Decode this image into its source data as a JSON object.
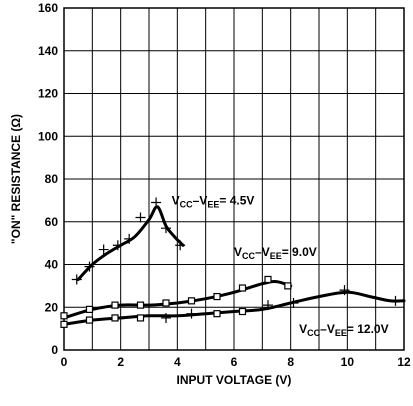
{
  "chart_data": {
    "type": "line",
    "title": "",
    "xlabel": "INPUT VOLTAGE (V)",
    "ylabel": "\"ON\" RESISTANCE (Ω)",
    "xlim": [
      0,
      12
    ],
    "ylim": [
      0,
      160
    ],
    "xticks": [
      0,
      2,
      4,
      6,
      8,
      10,
      12
    ],
    "yticks": [
      0,
      20,
      40,
      60,
      80,
      100,
      120,
      140,
      160
    ],
    "grid": true,
    "legend": "none",
    "series": [
      {
        "name": "VCC–VEE= 4.5V",
        "marker": "plus",
        "curve": [
          [
            0.5,
            33
          ],
          [
            1.0,
            40
          ],
          [
            1.5,
            45
          ],
          [
            2.0,
            49
          ],
          [
            2.5,
            53
          ],
          [
            3.0,
            61
          ],
          [
            3.3,
            67
          ],
          [
            3.6,
            58
          ],
          [
            3.9,
            53
          ],
          [
            4.2,
            49
          ]
        ],
        "points": [
          [
            0.45,
            33
          ],
          [
            0.9,
            39
          ],
          [
            1.4,
            47
          ],
          [
            1.9,
            49
          ],
          [
            2.3,
            52
          ],
          [
            2.7,
            62
          ],
          [
            3.25,
            69
          ],
          [
            3.6,
            57
          ],
          [
            4.1,
            49
          ]
        ]
      },
      {
        "name": "VCC–VEE= 9.0V",
        "marker": "square",
        "curve": [
          [
            0,
            15
          ],
          [
            1.0,
            19
          ],
          [
            2.0,
            21
          ],
          [
            3.0,
            21
          ],
          [
            4.0,
            22
          ],
          [
            5.0,
            24
          ],
          [
            6.0,
            27
          ],
          [
            7.0,
            31
          ],
          [
            7.5,
            32
          ],
          [
            8.0,
            30
          ]
        ],
        "points": [
          [
            0,
            16
          ],
          [
            0.9,
            19
          ],
          [
            1.8,
            21
          ],
          [
            2.7,
            21
          ],
          [
            3.6,
            22
          ],
          [
            4.5,
            23
          ],
          [
            5.4,
            25
          ],
          [
            6.3,
            29
          ],
          [
            7.2,
            33
          ],
          [
            7.9,
            30
          ]
        ]
      },
      {
        "name": "VCC–VEE= 12.0V",
        "marker": "mixed",
        "curve": [
          [
            0,
            12
          ],
          [
            1.0,
            14
          ],
          [
            2.0,
            15
          ],
          [
            3.0,
            16
          ],
          [
            4.0,
            16
          ],
          [
            5.0,
            17
          ],
          [
            6.0,
            18
          ],
          [
            7.0,
            19
          ],
          [
            8.0,
            22
          ],
          [
            9.0,
            25
          ],
          [
            10.0,
            27
          ],
          [
            10.8,
            25
          ],
          [
            11.5,
            23
          ],
          [
            12.0,
            23
          ]
        ],
        "points": [
          [
            0,
            12,
            "square"
          ],
          [
            0.9,
            14,
            "square"
          ],
          [
            1.8,
            15,
            "square"
          ],
          [
            2.7,
            15,
            "square"
          ],
          [
            3.6,
            15,
            "plus"
          ],
          [
            4.5,
            17,
            "plus"
          ],
          [
            5.4,
            17,
            "square"
          ],
          [
            6.3,
            18,
            "square"
          ],
          [
            7.2,
            21,
            "plus"
          ],
          [
            8.1,
            22,
            "plus"
          ],
          [
            9.9,
            28,
            "plus"
          ],
          [
            11.7,
            23,
            "plus"
          ]
        ]
      }
    ],
    "annotations": [
      {
        "series": 0,
        "main": "V",
        "sub1": "CC",
        "mid": "–V",
        "sub2": "EE",
        "tail": "= 4.5V",
        "at": [
          3.8,
          68
        ]
      },
      {
        "series": 1,
        "main": "V",
        "sub1": "CC",
        "mid": "–V",
        "sub2": "EE",
        "tail": "= 9.0V",
        "at": [
          6.0,
          44
        ]
      },
      {
        "series": 2,
        "main": "V",
        "sub1": "CC",
        "mid": "–V",
        "sub2": "EE",
        "tail": "= 12.0V",
        "at": [
          8.3,
          8
        ]
      }
    ]
  }
}
